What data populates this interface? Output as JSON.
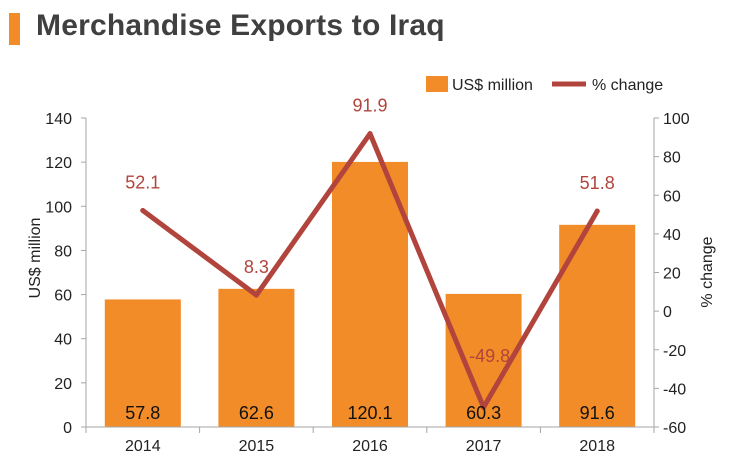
{
  "header": {
    "title": "Merchandise Exports to Iraq"
  },
  "chart_data": {
    "type": "bar",
    "categories": [
      "2014",
      "2015",
      "2016",
      "2017",
      "2018"
    ],
    "series": [
      {
        "name": "US$ million",
        "type": "bar",
        "axis": "left",
        "values": [
          57.8,
          62.6,
          120.1,
          60.3,
          91.6
        ],
        "labels": [
          "57.8",
          "62.6",
          "120.1",
          "60.3",
          "91.6"
        ]
      },
      {
        "name": "% change",
        "type": "line",
        "axis": "right",
        "values": [
          52.1,
          8.3,
          91.9,
          -49.8,
          51.8
        ],
        "labels": [
          "52.1",
          "8.3",
          "91.9",
          "-49.8",
          "51.8"
        ]
      }
    ],
    "ylabel": "US$ million",
    "y2label": "% change",
    "ylim": [
      0,
      140
    ],
    "y2lim": [
      -60,
      100
    ],
    "yticks": [
      "0",
      "20",
      "40",
      "60",
      "80",
      "100",
      "120",
      "140"
    ],
    "y2ticks": [
      "-60",
      "-40",
      "-20",
      "0",
      "20",
      "40",
      "60",
      "80",
      "100"
    ],
    "legend": "top-right",
    "grid": false,
    "colors": {
      "bar": "#f28c28",
      "line": "#b1443c",
      "accent": "#f28c28"
    }
  }
}
